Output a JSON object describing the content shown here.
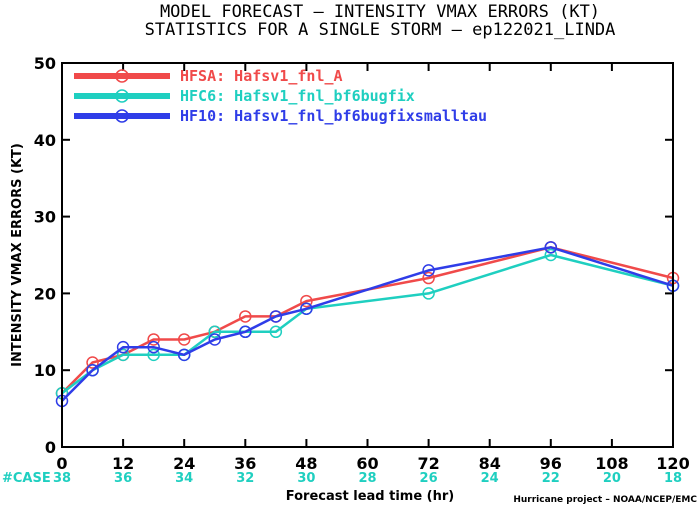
{
  "chart_data": {
    "type": "line",
    "title": "MODEL FORECAST – INTENSITY VMAX ERRORS (KT)",
    "subtitle": "STATISTICS FOR A SINGLE STORM – ep122021_LINDA",
    "xlabel": "Forecast lead time (hr)",
    "ylabel": "INTENSITY VMAX ERRORS (KT)",
    "xlim": [
      0,
      120
    ],
    "ylim": [
      0,
      50
    ],
    "x_ticks": [
      0,
      12,
      24,
      36,
      48,
      60,
      72,
      84,
      96,
      108,
      120
    ],
    "y_ticks": [
      0,
      10,
      20,
      30,
      40,
      50
    ],
    "grid": false,
    "legend_position": "top-left",
    "case_label": "#CASE",
    "case_counts": [
      38,
      36,
      34,
      32,
      30,
      28,
      26,
      24,
      22,
      20,
      18
    ],
    "credit": "Hurricane project – NOAA/NCEP/EMC",
    "series": [
      {
        "name": "HFSA: Hafsv1_fnl_A",
        "color": "#f04a4a",
        "x": [
          0,
          6,
          12,
          18,
          24,
          30,
          36,
          42,
          48,
          72,
          96,
          120
        ],
        "y": [
          7,
          11,
          12,
          14,
          14,
          15,
          17,
          17,
          19,
          22,
          26,
          22
        ]
      },
      {
        "name": "HFC6: Hafsv1_fnl_bf6bugfix",
        "color": "#1fcfc0",
        "x": [
          0,
          6,
          12,
          18,
          24,
          30,
          36,
          42,
          48,
          72,
          96,
          120
        ],
        "y": [
          7,
          10,
          12,
          12,
          12,
          15,
          15,
          15,
          18,
          20,
          25,
          21
        ]
      },
      {
        "name": "HF10: Hafsv1_fnl_bf6bugfixsmalltau",
        "color": "#2f3de8",
        "x": [
          0,
          6,
          12,
          18,
          24,
          30,
          36,
          42,
          48,
          72,
          96,
          120
        ],
        "y": [
          6,
          10,
          13,
          13,
          12,
          14,
          15,
          17,
          18,
          23,
          26,
          21
        ]
      }
    ]
  }
}
